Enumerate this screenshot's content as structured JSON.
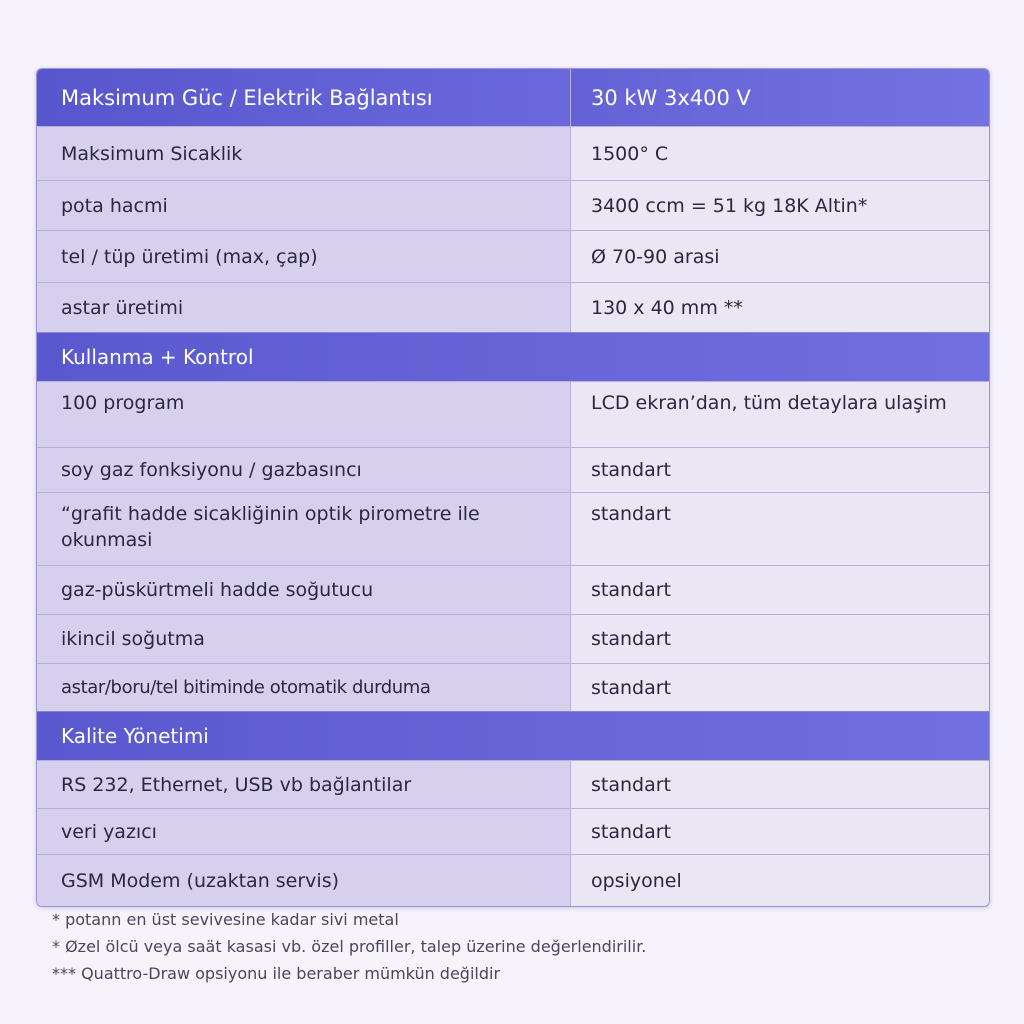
{
  "header": {
    "label": "Maksimum Güc / Elektrik Bağlantısı",
    "value": "30 kW 3x400 V"
  },
  "sections": [
    {
      "rows": [
        {
          "label": "Maksimum Sicaklik",
          "value": "1500° C"
        },
        {
          "label": "pota hacmi",
          "value": "3400 ccm = 51 kg 18K Altin*"
        },
        {
          "label": "tel / tüp üretimi (max, çap)",
          "value": "Ø 70-90 arasi"
        },
        {
          "label": "astar üretimi",
          "value": "130 x 40 mm **"
        }
      ]
    },
    {
      "title": "Kullanma + Kontrol",
      "rows": [
        {
          "label": "100 program",
          "value": "LCD ekran’dan, tüm detaylara ulaşim"
        },
        {
          "label": "soy gaz fonksiyonu / gazbasıncı",
          "value": "standart"
        },
        {
          "label": "“grafit hadde sicakliğinin optik pirometre ile okunmasi",
          "value": "standart"
        },
        {
          "label": "gaz-püskürtmeli hadde soğutucu",
          "value": "standart"
        },
        {
          "label": "ikincil soğutma",
          "value": "standart"
        },
        {
          "label": "astar/boru/tel bitiminde otomatik durduma",
          "value": "standart"
        }
      ]
    },
    {
      "title": "Kalite Yönetimi",
      "rows": [
        {
          "label": "RS 232, Ethernet, USB vb bağlantilar",
          "value": "standart"
        },
        {
          "label": "veri yazıcı",
          "value": "standart"
        },
        {
          "label": "GSM Modem (uzaktan servis)",
          "value": "opsiyonel"
        }
      ]
    }
  ],
  "footnotes": [
    "* potann en üst sevivesine kadar sivi metal",
    "* Øzel ölcü veya saät kasasi vb. özel profiller, talep üzerine değerlendirilir.",
    "*** Quattro-Draw opsiyonu ile beraber mümkün değildir"
  ],
  "colors": {
    "header": "#5a58ce",
    "label_cell": "#d6d0ee",
    "value_cell": "#ebe6f3"
  }
}
